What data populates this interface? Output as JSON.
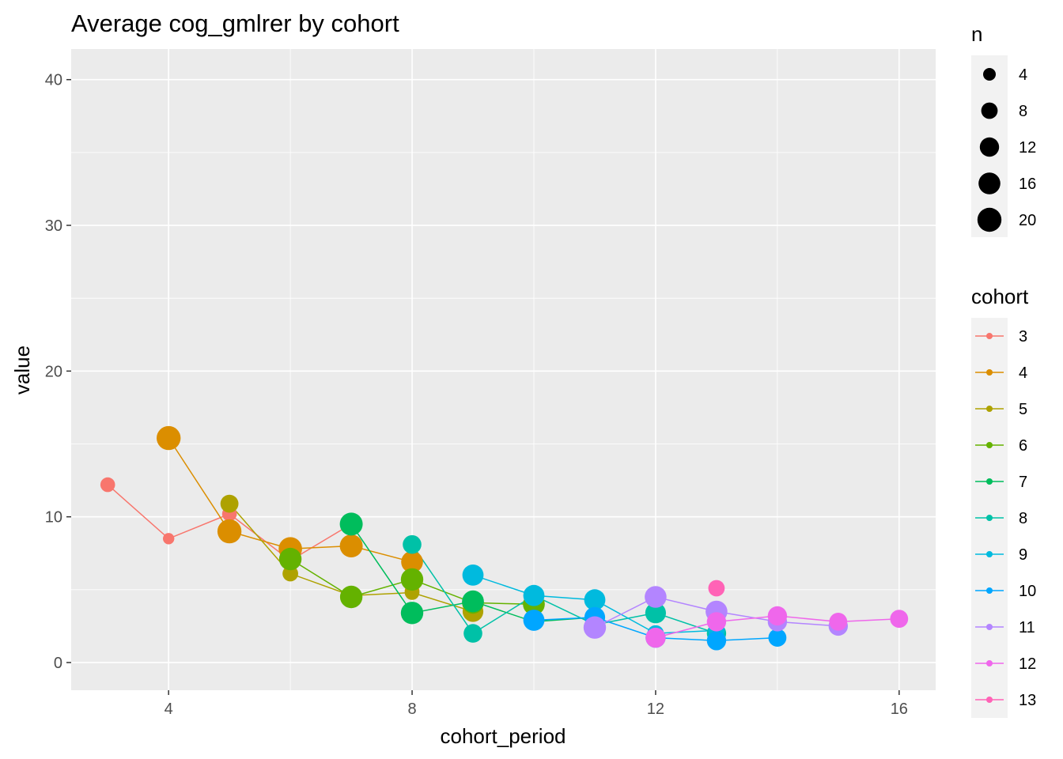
{
  "chart_data": {
    "type": "line",
    "title": "Average cog_gmlrer by cohort",
    "xlabel": "cohort_period",
    "ylabel": "value",
    "xlim": [
      2.4,
      16.6
    ],
    "ylim": [
      -1.9,
      42.1
    ],
    "x_ticks": [
      4,
      8,
      12,
      16
    ],
    "y_ticks": [
      0,
      10,
      20,
      30,
      40
    ],
    "grid": true,
    "legend_position": "right",
    "size_legend": {
      "title": "n",
      "values": [
        4,
        8,
        12,
        16,
        20
      ]
    },
    "color_legend_title": "cohort",
    "series": [
      {
        "name": "3",
        "color": "#F8766D",
        "points": [
          {
            "x": 3,
            "y": 12.2,
            "n": 6
          },
          {
            "x": 4,
            "y": 8.5,
            "n": 3
          },
          {
            "x": 5,
            "y": 10.2,
            "n": 6
          },
          {
            "x": 6,
            "y": 7.0,
            "n": 6
          },
          {
            "x": 7,
            "y": 9.5,
            "n": 7
          }
        ]
      },
      {
        "name": "4",
        "color": "#DB8E00",
        "points": [
          {
            "x": 4,
            "y": 15.4,
            "n": 20
          },
          {
            "x": 5,
            "y": 9.0,
            "n": 20
          },
          {
            "x": 6,
            "y": 7.8,
            "n": 19
          },
          {
            "x": 7,
            "y": 8.0,
            "n": 18
          },
          {
            "x": 8,
            "y": 6.9,
            "n": 16
          },
          {
            "x": 8,
            "y": 4.9,
            "n": 6
          }
        ]
      },
      {
        "name": "5",
        "color": "#AEA200",
        "points": [
          {
            "x": 5,
            "y": 10.9,
            "n": 10
          },
          {
            "x": 6,
            "y": 6.1,
            "n": 7
          },
          {
            "x": 7,
            "y": 4.6,
            "n": 6
          },
          {
            "x": 8,
            "y": 4.8,
            "n": 6
          },
          {
            "x": 9,
            "y": 3.5,
            "n": 14
          }
        ]
      },
      {
        "name": "6",
        "color": "#64B200",
        "points": [
          {
            "x": 6,
            "y": 7.1,
            "n": 17
          },
          {
            "x": 7,
            "y": 4.5,
            "n": 17
          },
          {
            "x": 8,
            "y": 5.7,
            "n": 17
          },
          {
            "x": 9,
            "y": 4.1,
            "n": 16
          },
          {
            "x": 10,
            "y": 4.0,
            "n": 16
          }
        ]
      },
      {
        "name": "7",
        "color": "#00BD5C",
        "points": [
          {
            "x": 7,
            "y": 9.5,
            "n": 18
          },
          {
            "x": 8,
            "y": 3.4,
            "n": 17
          },
          {
            "x": 9,
            "y": 4.2,
            "n": 16
          },
          {
            "x": 10,
            "y": 2.8,
            "n": 8
          },
          {
            "x": 11,
            "y": 3.1,
            "n": 8
          }
        ]
      },
      {
        "name": "8",
        "color": "#00C1A7",
        "points": [
          {
            "x": 8,
            "y": 8.1,
            "n": 11
          },
          {
            "x": 9,
            "y": 2.0,
            "n": 11
          },
          {
            "x": 10,
            "y": 4.6,
            "n": 14
          },
          {
            "x": 11,
            "y": 2.6,
            "n": 6
          },
          {
            "x": 12,
            "y": 3.4,
            "n": 14
          },
          {
            "x": 13,
            "y": 2.0,
            "n": 12
          }
        ]
      },
      {
        "name": "9",
        "color": "#00BADE",
        "points": [
          {
            "x": 9,
            "y": 6.0,
            "n": 15
          },
          {
            "x": 10,
            "y": 4.6,
            "n": 15
          },
          {
            "x": 11,
            "y": 4.3,
            "n": 15
          },
          {
            "x": 12,
            "y": 2.0,
            "n": 8
          },
          {
            "x": 13,
            "y": 2.2,
            "n": 8
          }
        ]
      },
      {
        "name": "10",
        "color": "#00A6FF",
        "points": [
          {
            "x": 10,
            "y": 2.9,
            "n": 15
          },
          {
            "x": 11,
            "y": 3.1,
            "n": 14
          },
          {
            "x": 12,
            "y": 1.7,
            "n": 13
          },
          {
            "x": 13,
            "y": 1.5,
            "n": 12
          },
          {
            "x": 14,
            "y": 1.7,
            "n": 10
          }
        ]
      },
      {
        "name": "11",
        "color": "#B385FF",
        "points": [
          {
            "x": 11,
            "y": 2.4,
            "n": 17
          },
          {
            "x": 12,
            "y": 4.5,
            "n": 16
          },
          {
            "x": 13,
            "y": 3.5,
            "n": 16
          },
          {
            "x": 14,
            "y": 2.8,
            "n": 12
          },
          {
            "x": 15,
            "y": 2.5,
            "n": 12
          }
        ]
      },
      {
        "name": "12",
        "color": "#EF67EB",
        "points": [
          {
            "x": 12,
            "y": 1.7,
            "n": 13
          },
          {
            "x": 13,
            "y": 2.8,
            "n": 12
          },
          {
            "x": 14,
            "y": 3.2,
            "n": 12
          },
          {
            "x": 15,
            "y": 2.8,
            "n": 10
          },
          {
            "x": 16,
            "y": 3.0,
            "n": 10
          }
        ]
      },
      {
        "name": "13",
        "color": "#FF63B6",
        "points": [
          {
            "x": 13,
            "y": 5.1,
            "n": 8
          }
        ]
      }
    ]
  }
}
